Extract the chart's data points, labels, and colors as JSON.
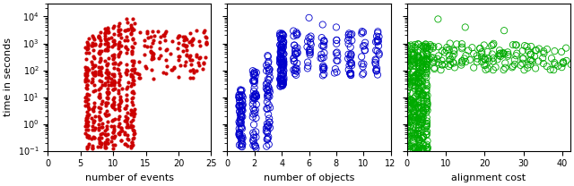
{
  "subplot1": {
    "xlabel": "number of events",
    "ylabel": "time in seconds",
    "color": "#cc0000",
    "marker": "o",
    "markersize": 3,
    "xlim": [
      0,
      25
    ],
    "ylim": [
      0.1,
      30000
    ],
    "xticks": [
      0,
      5,
      10,
      15,
      20,
      25
    ],
    "filled": true
  },
  "subplot2": {
    "xlabel": "number of objects",
    "color": "#0000cc",
    "marker": "o",
    "markersize": 3,
    "xlim": [
      0,
      12
    ],
    "ylim": [
      0.1,
      30000
    ],
    "xticks": [
      0,
      2,
      4,
      6,
      8,
      10,
      12
    ],
    "filled": false
  },
  "subplot3": {
    "xlabel": "alignment cost",
    "color": "#00aa00",
    "marker": "o",
    "markersize": 3,
    "xlim": [
      0,
      42
    ],
    "ylim": [
      0.1,
      30000
    ],
    "xticks": [
      0,
      10,
      20,
      30,
      40
    ],
    "filled": false
  },
  "figsize": [
    6.4,
    2.08
  ],
  "dpi": 100
}
